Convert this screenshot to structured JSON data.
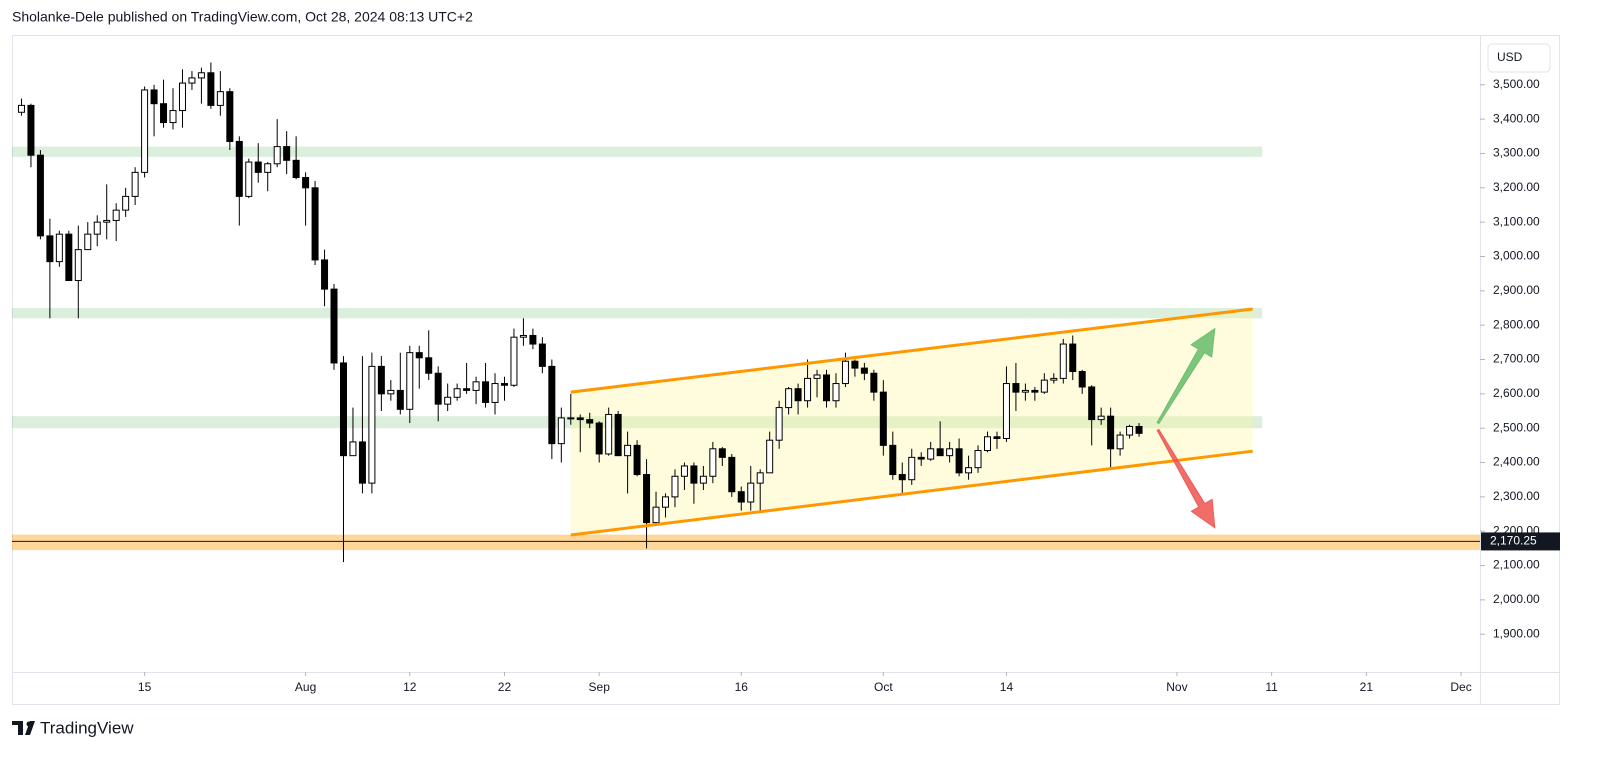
{
  "header": "Sholanke-Dele published on TradingView.com, Oct 28, 2024 08:13 UTC+2",
  "footer": "TradingView",
  "chart_data": {
    "type": "candlestick",
    "currency": "USD",
    "up_color": "#ffffff",
    "down_color": "#000000",
    "border_color": "#000000",
    "x": [
      "2024-07-02",
      "2024-07-03",
      "2024-07-04",
      "2024-07-05",
      "2024-07-06",
      "2024-07-07",
      "2024-07-08",
      "2024-07-09",
      "2024-07-10",
      "2024-07-11",
      "2024-07-12",
      "2024-07-13",
      "2024-07-14",
      "2024-07-15",
      "2024-07-16",
      "2024-07-17",
      "2024-07-18",
      "2024-07-19",
      "2024-07-20",
      "2024-07-21",
      "2024-07-22",
      "2024-07-23",
      "2024-07-24",
      "2024-07-25",
      "2024-07-26",
      "2024-07-27",
      "2024-07-28",
      "2024-07-29",
      "2024-07-30",
      "2024-07-31",
      "2024-08-01",
      "2024-08-02",
      "2024-08-03",
      "2024-08-04",
      "2024-08-05",
      "2024-08-06",
      "2024-08-07",
      "2024-08-08",
      "2024-08-09",
      "2024-08-10",
      "2024-08-11",
      "2024-08-12",
      "2024-08-13",
      "2024-08-14",
      "2024-08-15",
      "2024-08-16",
      "2024-08-17",
      "2024-08-18",
      "2024-08-19",
      "2024-08-20",
      "2024-08-21",
      "2024-08-22",
      "2024-08-23",
      "2024-08-24",
      "2024-08-25",
      "2024-08-26",
      "2024-08-27",
      "2024-08-28",
      "2024-08-29",
      "2024-08-30",
      "2024-08-31",
      "2024-09-01",
      "2024-09-02",
      "2024-09-03",
      "2024-09-04",
      "2024-09-05",
      "2024-09-06",
      "2024-09-07",
      "2024-09-08",
      "2024-09-09",
      "2024-09-10",
      "2024-09-11",
      "2024-09-12",
      "2024-09-13",
      "2024-09-14",
      "2024-09-15",
      "2024-09-16",
      "2024-09-17",
      "2024-09-18",
      "2024-09-19",
      "2024-09-20",
      "2024-09-21",
      "2024-09-22",
      "2024-09-23",
      "2024-09-24",
      "2024-09-25",
      "2024-09-26",
      "2024-09-27",
      "2024-09-28",
      "2024-09-29",
      "2024-09-30",
      "2024-10-01",
      "2024-10-02",
      "2024-10-03",
      "2024-10-04",
      "2024-10-05",
      "2024-10-06",
      "2024-10-07",
      "2024-10-08",
      "2024-10-09",
      "2024-10-10",
      "2024-10-11",
      "2024-10-12",
      "2024-10-13",
      "2024-10-14",
      "2024-10-15",
      "2024-10-16",
      "2024-10-17",
      "2024-10-18",
      "2024-10-19",
      "2024-10-20",
      "2024-10-21",
      "2024-10-22",
      "2024-10-23",
      "2024-10-24",
      "2024-10-25",
      "2024-10-26",
      "2024-10-27",
      "2024-10-28"
    ],
    "open": [
      3420,
      3440,
      3295,
      3060,
      2985,
      3065,
      2930,
      3020,
      3065,
      3100,
      3105,
      3135,
      3175,
      3245,
      3485,
      3445,
      3390,
      3425,
      3505,
      3520,
      3535,
      3440,
      3480,
      3335,
      3175,
      3275,
      3245,
      3270,
      3320,
      3280,
      3230,
      3200,
      2990,
      2905,
      2690,
      2420,
      2460,
      2340,
      2680,
      2600,
      2610,
      2555,
      2720,
      2705,
      2660,
      2570,
      2590,
      2615,
      2610,
      2635,
      2575,
      2630,
      2625,
      2765,
      2770,
      2745,
      2680,
      2455,
      2530,
      2530,
      2525,
      2515,
      2425,
      2540,
      2420,
      2450,
      2365,
      2225,
      2270,
      2300,
      2360,
      2390,
      2340,
      2360,
      2440,
      2415,
      2315,
      2285,
      2340,
      2370,
      2465,
      2560,
      2615,
      2580,
      2645,
      2655,
      2580,
      2630,
      2695,
      2675,
      2660,
      2605,
      2450,
      2365,
      2350,
      2415,
      2410,
      2440,
      2420,
      2440,
      2370,
      2385,
      2435,
      2475,
      2470,
      2630,
      2605,
      2610,
      2605,
      2640,
      2645,
      2745,
      2665,
      2620,
      2525,
      2535,
      2440,
      2480,
      2505
    ],
    "high": [
      3460,
      3445,
      3310,
      3110,
      3075,
      3075,
      3090,
      3100,
      3120,
      3210,
      3155,
      3200,
      3260,
      3495,
      3500,
      3515,
      3490,
      3545,
      3540,
      3550,
      3565,
      3540,
      3490,
      3350,
      3285,
      3330,
      3275,
      3400,
      3365,
      3350,
      3245,
      3220,
      3020,
      2920,
      2710,
      2560,
      2710,
      2720,
      2710,
      2640,
      2720,
      2740,
      2740,
      2785,
      2680,
      2630,
      2630,
      2690,
      2650,
      2690,
      2660,
      2650,
      2790,
      2820,
      2790,
      2765,
      2700,
      2560,
      2600,
      2540,
      2545,
      2520,
      2560,
      2550,
      2490,
      2465,
      2410,
      2315,
      2310,
      2380,
      2400,
      2400,
      2390,
      2460,
      2445,
      2425,
      2330,
      2390,
      2380,
      2490,
      2580,
      2620,
      2630,
      2700,
      2670,
      2670,
      2660,
      2720,
      2700,
      2690,
      2670,
      2640,
      2490,
      2400,
      2440,
      2430,
      2460,
      2520,
      2460,
      2470,
      2420,
      2450,
      2490,
      2490,
      2680,
      2690,
      2630,
      2620,
      2660,
      2660,
      2760,
      2770,
      2670,
      2625,
      2560,
      2560,
      2490,
      2510,
      2515
    ],
    "low": [
      3410,
      3260,
      3050,
      2820,
      2970,
      2930,
      2820,
      3020,
      3030,
      3050,
      3045,
      3115,
      3150,
      3230,
      3350,
      3375,
      3370,
      3375,
      3485,
      3445,
      3430,
      3410,
      3310,
      3090,
      3170,
      3215,
      3190,
      3260,
      3240,
      3225,
      3090,
      2975,
      2855,
      2670,
      2110,
      2420,
      2310,
      2310,
      2550,
      2580,
      2540,
      2515,
      2615,
      2640,
      2520,
      2550,
      2580,
      2600,
      2570,
      2560,
      2540,
      2580,
      2620,
      2740,
      2730,
      2660,
      2410,
      2400,
      2510,
      2430,
      2500,
      2400,
      2420,
      2420,
      2310,
      2360,
      2150,
      2220,
      2240,
      2270,
      2320,
      2280,
      2320,
      2340,
      2390,
      2300,
      2260,
      2260,
      2260,
      2370,
      2440,
      2540,
      2540,
      2560,
      2590,
      2560,
      2560,
      2620,
      2650,
      2640,
      2580,
      2420,
      2350,
      2310,
      2335,
      2390,
      2405,
      2420,
      2400,
      2360,
      2350,
      2370,
      2430,
      2440,
      2460,
      2550,
      2580,
      2580,
      2600,
      2630,
      2630,
      2640,
      2600,
      2450,
      2510,
      2380,
      2420,
      2470,
      2475
    ],
    "close": [
      3440,
      3295,
      3060,
      2985,
      3065,
      2930,
      3020,
      3065,
      3100,
      3105,
      3135,
      3175,
      3245,
      3485,
      3445,
      3390,
      3425,
      3505,
      3520,
      3535,
      3440,
      3480,
      3335,
      3175,
      3275,
      3245,
      3270,
      3320,
      3280,
      3230,
      3200,
      2990,
      2905,
      2690,
      2420,
      2460,
      2340,
      2680,
      2600,
      2610,
      2555,
      2720,
      2705,
      2660,
      2570,
      2590,
      2615,
      2610,
      2635,
      2575,
      2630,
      2625,
      2765,
      2770,
      2745,
      2680,
      2455,
      2530,
      2530,
      2525,
      2515,
      2425,
      2540,
      2420,
      2450,
      2365,
      2225,
      2270,
      2300,
      2360,
      2390,
      2340,
      2360,
      2440,
      2415,
      2315,
      2285,
      2340,
      2370,
      2465,
      2560,
      2615,
      2580,
      2645,
      2655,
      2580,
      2630,
      2695,
      2675,
      2660,
      2605,
      2450,
      2365,
      2350,
      2415,
      2410,
      2440,
      2420,
      2440,
      2370,
      2385,
      2435,
      2475,
      2470,
      2630,
      2605,
      2610,
      2605,
      2640,
      2645,
      2745,
      2665,
      2620,
      2525,
      2535,
      2440,
      2480,
      2505,
      2485
    ],
    "xlim": [
      "2024-07-01",
      "2024-12-03"
    ],
    "xticks": [
      {
        "value": "2024-07-15",
        "label": "15"
      },
      {
        "value": "2024-08-01",
        "label": "Aug"
      },
      {
        "value": "2024-08-12",
        "label": "12"
      },
      {
        "value": "2024-08-22",
        "label": "22"
      },
      {
        "value": "2024-09-01",
        "label": "Sep"
      },
      {
        "value": "2024-09-16",
        "label": "16"
      },
      {
        "value": "2024-10-01",
        "label": "Oct"
      },
      {
        "value": "2024-10-14",
        "label": "14"
      },
      {
        "value": "2024-11-01",
        "label": "Nov"
      },
      {
        "value": "2024-11-11",
        "label": "11"
      },
      {
        "value": "2024-11-21",
        "label": "21"
      },
      {
        "value": "2024-12-01",
        "label": "Dec"
      }
    ],
    "ylim": [
      1790,
      3645
    ],
    "yticks": [
      {
        "value": 1900,
        "label": "1,900.00"
      },
      {
        "value": 2000,
        "label": "2,000.00"
      },
      {
        "value": 2100,
        "label": "2,100.00"
      },
      {
        "value": 2200,
        "label": "2,200.00"
      },
      {
        "value": 2300,
        "label": "2,300.00"
      },
      {
        "value": 2400,
        "label": "2,400.00"
      },
      {
        "value": 2500,
        "label": "2,500.00"
      },
      {
        "value": 2600,
        "label": "2,600.00"
      },
      {
        "value": 2700,
        "label": "2,700.00"
      },
      {
        "value": 2800,
        "label": "2,800.00"
      },
      {
        "value": 2900,
        "label": "2,900.00"
      },
      {
        "value": 3000,
        "label": "3,000.00"
      },
      {
        "value": 3100,
        "label": "3,100.00"
      },
      {
        "value": 3200,
        "label": "3,200.00"
      },
      {
        "value": 3300,
        "label": "3,300.00"
      },
      {
        "value": 3400,
        "label": "3,400.00"
      },
      {
        "value": 3500,
        "label": "3,500.00"
      }
    ],
    "grid": false,
    "price_line": {
      "value": 2170.25,
      "label": "2,170.25"
    },
    "zones": [
      {
        "low": 3290,
        "high": 3320,
        "color": "#4caf50",
        "end": "2024-11-10"
      },
      {
        "low": 2820,
        "high": 2850,
        "color": "#4caf50",
        "end": "2024-11-10"
      },
      {
        "low": 2500,
        "high": 2535,
        "color": "#4caf50",
        "end": "2024-11-10"
      },
      {
        "low": 2145,
        "high": 2190,
        "color": "#ff9800"
      }
    ],
    "channel": {
      "color": "#ff9800",
      "fill": "#fff59d",
      "upper": [
        [
          "2024-08-29",
          2605
        ],
        [
          "2024-11-09",
          2847
        ]
      ],
      "lower": [
        [
          "2024-08-29",
          2189
        ],
        [
          "2024-11-09",
          2433
        ]
      ]
    },
    "arrows": [
      {
        "color": "#66bb6a",
        "from": [
          "2024-10-30",
          2515
        ],
        "to": [
          "2024-11-05",
          2790
        ]
      },
      {
        "color": "#ef5350",
        "from": [
          "2024-10-30",
          2495
        ],
        "to": [
          "2024-11-05",
          2210
        ]
      }
    ]
  }
}
